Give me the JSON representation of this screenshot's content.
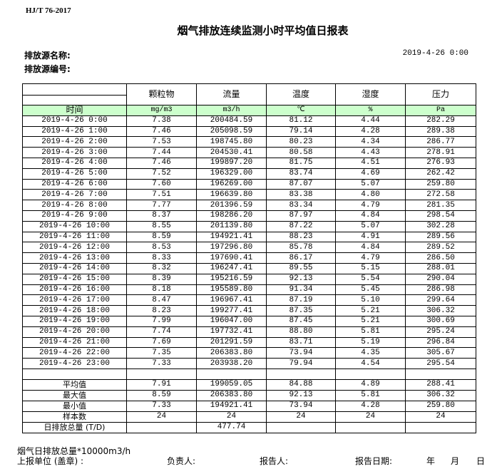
{
  "standard": "HJ/T  76-2017",
  "title": "烟气排放连续监测小时平均值日报表",
  "source_name_label": "排放源名称:",
  "source_code_label": "排放源编号:",
  "report_datetime": "2019-4-26  0:00",
  "columns": [
    "颗粒物",
    "流量",
    "温度",
    "湿度",
    "压力"
  ],
  "units": {
    "time_label": "时间",
    "values": [
      "mg/m3",
      "m3/h",
      "℃",
      "%",
      "Pa"
    ]
  },
  "rows": [
    [
      "2019-4-26 0:00",
      "7.38",
      "200484.59",
      "81.12",
      "4.44",
      "282.29"
    ],
    [
      "2019-4-26 1:00",
      "7.46",
      "205098.59",
      "79.14",
      "4.28",
      "289.38"
    ],
    [
      "2019-4-26 2:00",
      "7.53",
      "198745.80",
      "80.23",
      "4.34",
      "286.77"
    ],
    [
      "2019-4-26 3:00",
      "7.44",
      "204530.41",
      "80.58",
      "4.43",
      "278.91"
    ],
    [
      "2019-4-26 4:00",
      "7.46",
      "199897.20",
      "81.75",
      "4.51",
      "276.93"
    ],
    [
      "2019-4-26 5:00",
      "7.52",
      "196329.00",
      "83.74",
      "4.69",
      "262.42"
    ],
    [
      "2019-4-26 6:00",
      "7.60",
      "196269.00",
      "87.07",
      "5.07",
      "259.80"
    ],
    [
      "2019-4-26 7:00",
      "7.51",
      "196639.80",
      "83.38",
      "4.80",
      "272.58"
    ],
    [
      "2019-4-26 8:00",
      "7.77",
      "201396.59",
      "83.34",
      "4.79",
      "281.35"
    ],
    [
      "2019-4-26 9:00",
      "8.37",
      "198286.20",
      "87.97",
      "4.84",
      "298.54"
    ],
    [
      "2019-4-26 10:00",
      "8.55",
      "201139.80",
      "87.22",
      "5.07",
      "302.28"
    ],
    [
      "2019-4-26 11:00",
      "8.59",
      "194921.41",
      "88.23",
      "4.91",
      "289.56"
    ],
    [
      "2019-4-26 12:00",
      "8.53",
      "197296.80",
      "85.78",
      "4.84",
      "289.52"
    ],
    [
      "2019-4-26 13:00",
      "8.33",
      "197690.41",
      "86.17",
      "4.79",
      "286.50"
    ],
    [
      "2019-4-26 14:00",
      "8.32",
      "196247.41",
      "89.55",
      "5.15",
      "288.01"
    ],
    [
      "2019-4-26 15:00",
      "8.39",
      "195216.59",
      "92.13",
      "5.54",
      "290.04"
    ],
    [
      "2019-4-26 16:00",
      "8.18",
      "195589.80",
      "91.34",
      "5.45",
      "286.98"
    ],
    [
      "2019-4-26 17:00",
      "8.47",
      "196967.41",
      "87.19",
      "5.10",
      "299.64"
    ],
    [
      "2019-4-26 18:00",
      "8.23",
      "199277.41",
      "87.35",
      "5.21",
      "306.32"
    ],
    [
      "2019-4-26 19:00",
      "7.99",
      "196047.00",
      "87.45",
      "5.21",
      "300.69"
    ],
    [
      "2019-4-26 20:00",
      "7.74",
      "197732.41",
      "88.80",
      "5.81",
      "295.24"
    ],
    [
      "2019-4-26 21:00",
      "7.69",
      "201291.59",
      "83.71",
      "5.19",
      "296.84"
    ],
    [
      "2019-4-26 22:00",
      "7.35",
      "206383.80",
      "73.94",
      "4.35",
      "305.67"
    ],
    [
      "2019-4-26 23:00",
      "7.33",
      "203938.20",
      "79.94",
      "4.54",
      "295.54"
    ]
  ],
  "summary": [
    [
      "平均值",
      "7.91",
      "199059.05",
      "84.88",
      "4.89",
      "288.41"
    ],
    [
      "最大值",
      "8.59",
      "206383.80",
      "92.13",
      "5.81",
      "306.32"
    ],
    [
      "最小值",
      "7.33",
      "194921.41",
      "73.94",
      "4.28",
      "259.80"
    ],
    [
      "样本数",
      "24",
      "24",
      "24",
      "24",
      "24"
    ],
    [
      "日排放总量 (T/D)",
      "",
      "477.74",
      "",
      "",
      ""
    ]
  ],
  "footer": {
    "note": "烟气日排放总量*10000m3/h",
    "unit_label": "上报单位 (盖章) :",
    "responsible_label": "负责人:",
    "reporter_label": "报告人:",
    "report_date_label": "报告日期:",
    "year": "年",
    "month": "月",
    "day": "日"
  }
}
